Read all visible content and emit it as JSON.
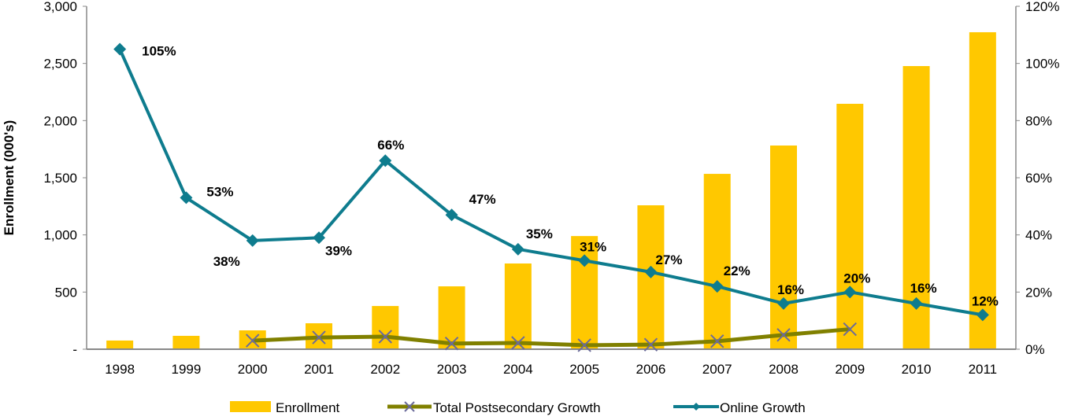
{
  "chart_data": {
    "type": "bar",
    "categories": [
      "1998",
      "1999",
      "2000",
      "2001",
      "2002",
      "2003",
      "2004",
      "2005",
      "2006",
      "2007",
      "2008",
      "2009",
      "2010",
      "2011"
    ],
    "ylabel": "Enrollment (000's)",
    "ylim": [
      0,
      3000
    ],
    "y2lim": [
      0,
      120
    ],
    "y_ticks": [
      "-",
      "500",
      "1,000",
      "1,500",
      "2,000",
      "2,500",
      "3,000"
    ],
    "y2_ticks": [
      "0%",
      "20%",
      "40%",
      "60%",
      "80%",
      "100%",
      "120%"
    ],
    "grid": false,
    "legend_position": "bottom",
    "series": [
      {
        "name": "Enrollment",
        "type": "bar",
        "axis": "left",
        "color": "#FFC800",
        "values": [
          76,
          117,
          165,
          227,
          378,
          550,
          750,
          990,
          1259,
          1534,
          1782,
          2147,
          2477,
          2773
        ]
      },
      {
        "name": "Total Postsecondary Growth",
        "type": "line",
        "axis": "right",
        "color": "#808000",
        "marker": "x",
        "marker_color": "#6b6b9a",
        "values": [
          null,
          null,
          3.0,
          4.1,
          4.4,
          2.0,
          2.2,
          1.4,
          1.6,
          2.8,
          5.0,
          7.0,
          null,
          null
        ]
      },
      {
        "name": "Online Growth",
        "type": "line",
        "axis": "right",
        "color": "#0E7C8E",
        "marker": "diamond",
        "values": [
          105,
          53,
          38,
          39,
          66,
          47,
          35,
          31,
          27,
          22,
          16,
          20,
          16,
          12
        ],
        "labels": [
          "105%",
          "53%",
          "38%",
          "39%",
          "66%",
          "47%",
          "35%",
          "31%",
          "27%",
          "22%",
          "16%",
          "20%",
          "16%",
          "12%"
        ]
      }
    ]
  }
}
